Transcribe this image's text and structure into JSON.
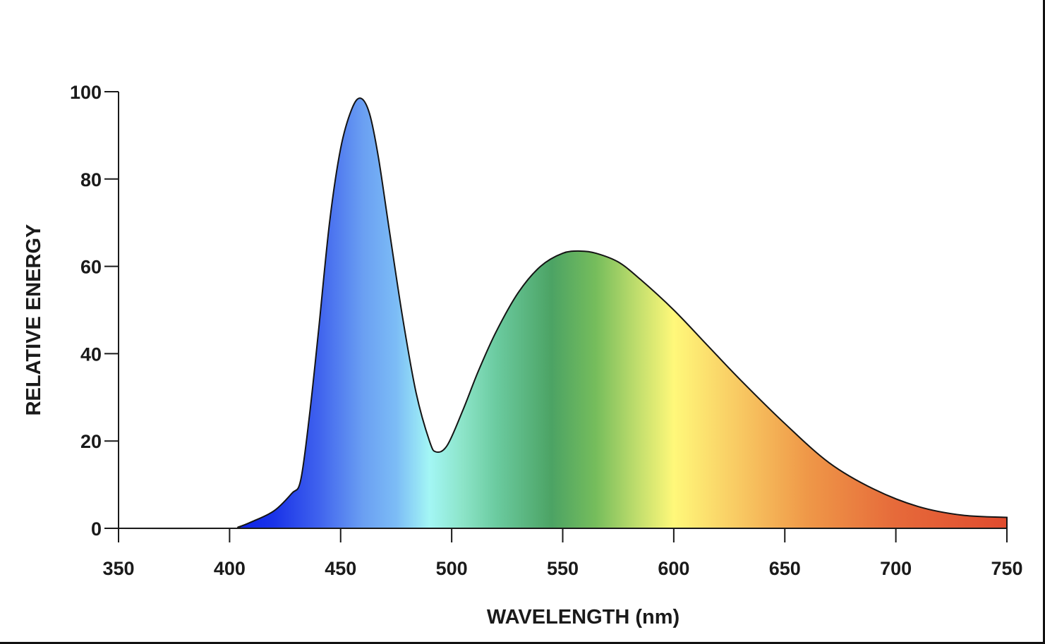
{
  "chart_data": {
    "type": "area",
    "title": "",
    "xlabel": "WAVELENGTH (nm)",
    "ylabel": "RELATIVE ENERGY",
    "xlim": [
      350,
      750
    ],
    "ylim": [
      0,
      100
    ],
    "x_ticks": [
      "350",
      "400",
      "450",
      "500",
      "550",
      "600",
      "650",
      "700",
      "750"
    ],
    "y_ticks": [
      "0",
      "20",
      "40",
      "60",
      "80",
      "100"
    ],
    "grid": false,
    "legend": "none",
    "fill": "visible-spectrum gradient",
    "series": [
      {
        "x": [
          350,
          400,
          404,
          410,
          420,
          428,
          432,
          436,
          440,
          445,
          450,
          455,
          459,
          463,
          467,
          472,
          478,
          484,
          490,
          493,
          498,
          505,
          512,
          520,
          530,
          540,
          550,
          558,
          565,
          575,
          585,
          600,
          615,
          630,
          650,
          670,
          690,
          710,
          730,
          750
        ],
        "y": [
          0,
          0,
          0.3,
          1.5,
          4,
          8,
          11,
          26,
          45,
          70,
          87,
          96,
          98.5,
          95,
          85,
          68,
          48,
          31,
          20,
          17.5,
          19,
          27,
          36,
          45,
          54,
          60,
          63,
          63.5,
          63,
          61,
          57,
          50,
          42,
          34,
          24,
          15,
          9,
          5,
          3,
          2.5
        ]
      }
    ],
    "spectrum_colors": [
      {
        "nm": 400,
        "color": "#0a1ee6"
      },
      {
        "nm": 420,
        "color": "#1a33e8"
      },
      {
        "nm": 440,
        "color": "#3f62ee"
      },
      {
        "nm": 460,
        "color": "#6a9ff2"
      },
      {
        "nm": 475,
        "color": "#7cbcf6"
      },
      {
        "nm": 490,
        "color": "#a3f6f5"
      },
      {
        "nm": 505,
        "color": "#8ce4c8"
      },
      {
        "nm": 520,
        "color": "#6bcba0"
      },
      {
        "nm": 545,
        "color": "#4ca364"
      },
      {
        "nm": 565,
        "color": "#76bd5c"
      },
      {
        "nm": 585,
        "color": "#c6e06e"
      },
      {
        "nm": 600,
        "color": "#fff87a"
      },
      {
        "nm": 630,
        "color": "#f8c862"
      },
      {
        "nm": 660,
        "color": "#ef9848"
      },
      {
        "nm": 700,
        "color": "#e66a3a"
      },
      {
        "nm": 750,
        "color": "#e04b2e"
      }
    ],
    "colors": {
      "axis": "#1a1a1a",
      "outline": "#141414"
    }
  }
}
